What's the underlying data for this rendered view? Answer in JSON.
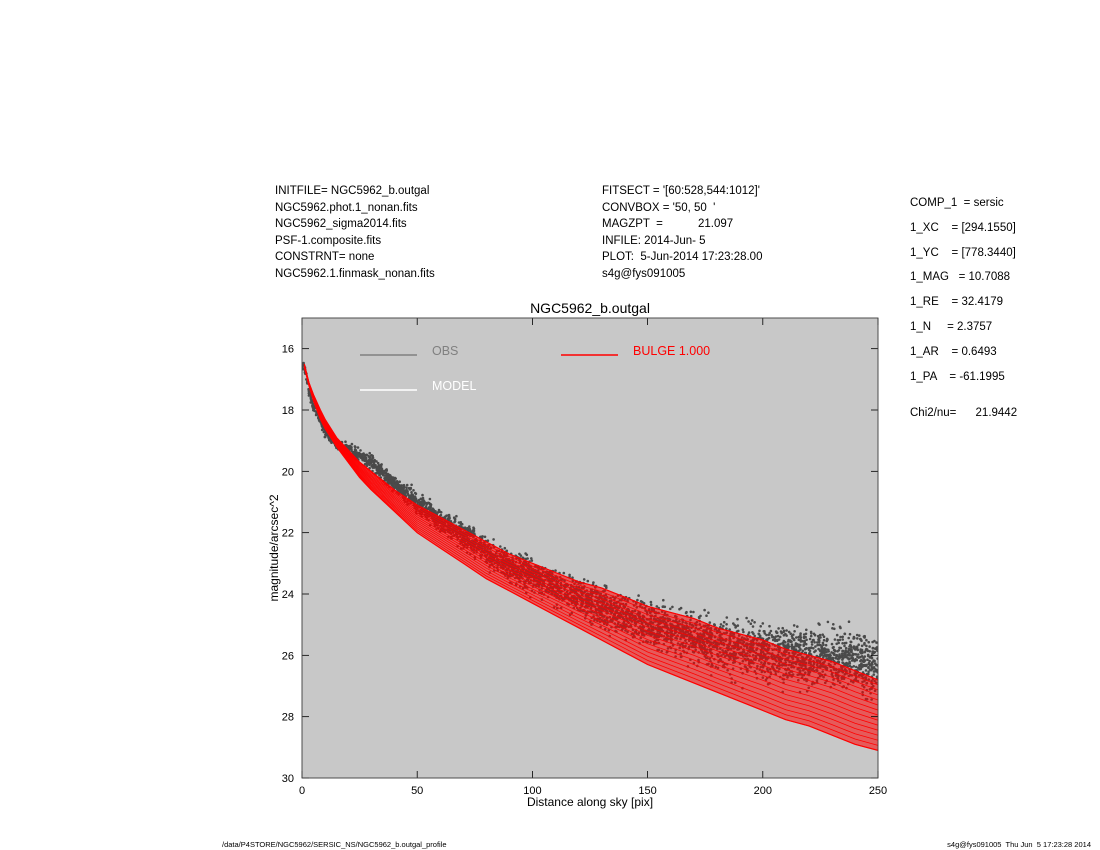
{
  "header": {
    "left": [
      "INITFILE= NGC5962_b.outgal",
      "NGC5962.phot.1_nonan.fits",
      "NGC5962_sigma2014.fits",
      "PSF-1.composite.fits",
      "CONSTRNT= none",
      "NGC5962.1.finmask_nonan.fits"
    ],
    "middle": [
      "FITSECT = '[60:528,544:1012]'",
      "CONVBOX = '50, 50  '",
      "MAGZPT  =           21.097",
      "INFILE: 2014-Jun- 5",
      "PLOT:  5-Jun-2014 17:23:28.00",
      "s4g@fys091005"
    ],
    "params": [
      "COMP_1  = sersic",
      "1_XC    = [294.1550]",
      "1_YC    = [778.3440]",
      "1_MAG   = 10.7088",
      "1_RE    = 32.4179",
      "1_N     = 2.3757",
      "1_AR    = 0.6493",
      "1_PA    = -61.1995"
    ],
    "chi2": "Chi2/nu=      21.9442"
  },
  "footer": {
    "left": "/data/P4STORE/NGC5962/SERSIC_NS/NGC5962_b.outgal_profile",
    "right": "s4g@fys091005  Thu Jun  5 17:23:28 2014"
  },
  "colors": {
    "plot_background": "#c8c8c8",
    "obs": "#4a4a4a",
    "model": "#ffffff",
    "bulge": "#ff0000",
    "obs_legend": "#808080"
  },
  "chart_data": {
    "type": "scatter",
    "title": "NGC5962_b.outgal",
    "xlabel": "Distance along sky [pix]",
    "ylabel": "magnitude/arcsec^2",
    "xlim": [
      0,
      250
    ],
    "ylim": [
      30,
      15
    ],
    "y_inverted": true,
    "grid": false,
    "xticks": [
      0,
      50,
      100,
      150,
      200,
      250
    ],
    "yticks": [
      16,
      18,
      20,
      22,
      24,
      26,
      28,
      30
    ],
    "legend": [
      {
        "label": "OBS",
        "color": "#808080"
      },
      {
        "label": "MODEL",
        "color": "#ffffff"
      },
      {
        "label": "BULGE  1.000",
        "color": "#ff0000"
      }
    ],
    "series": [
      {
        "name": "OBS",
        "kind": "points",
        "color": "#4a4a4a",
        "x": [
          1,
          3,
          5,
          8,
          10,
          15,
          20,
          25,
          30,
          40,
          50,
          60,
          70,
          80,
          90,
          100,
          110,
          120,
          130,
          140,
          150,
          160,
          170,
          180,
          190,
          200,
          210,
          220,
          230,
          240,
          250
        ],
        "y": [
          16.6,
          17.4,
          17.9,
          18.3,
          18.7,
          19.1,
          19.3,
          19.5,
          19.7,
          20.4,
          21.0,
          21.6,
          22.1,
          22.6,
          23.1,
          23.4,
          23.8,
          24.1,
          24.4,
          24.7,
          25.0,
          25.2,
          25.4,
          25.6,
          25.8,
          25.9,
          26.0,
          26.1,
          26.1,
          26.2,
          26.3
        ]
      },
      {
        "name": "BULGE  1.000",
        "kind": "band",
        "color": "#ff0000",
        "x": [
          1,
          3,
          5,
          8,
          10,
          15,
          20,
          25,
          30,
          40,
          50,
          60,
          70,
          80,
          90,
          100,
          110,
          120,
          130,
          140,
          150,
          160,
          170,
          180,
          190,
          200,
          210,
          220,
          230,
          240,
          250
        ],
        "y_upper": [
          16.5,
          17.1,
          17.5,
          18.0,
          18.3,
          18.9,
          19.3,
          19.7,
          20.0,
          20.6,
          21.1,
          21.5,
          21.9,
          22.3,
          22.7,
          23.0,
          23.3,
          23.6,
          23.8,
          24.1,
          24.4,
          24.6,
          24.8,
          25.1,
          25.3,
          25.5,
          25.8,
          26.0,
          26.2,
          26.5,
          26.8
        ],
        "y_lower": [
          16.6,
          17.2,
          17.7,
          18.3,
          18.6,
          19.2,
          19.7,
          20.2,
          20.6,
          21.3,
          22.0,
          22.5,
          23.0,
          23.5,
          23.9,
          24.3,
          24.7,
          25.1,
          25.5,
          25.9,
          26.3,
          26.6,
          26.9,
          27.2,
          27.5,
          27.8,
          28.1,
          28.3,
          28.6,
          28.9,
          29.1
        ]
      }
    ]
  }
}
